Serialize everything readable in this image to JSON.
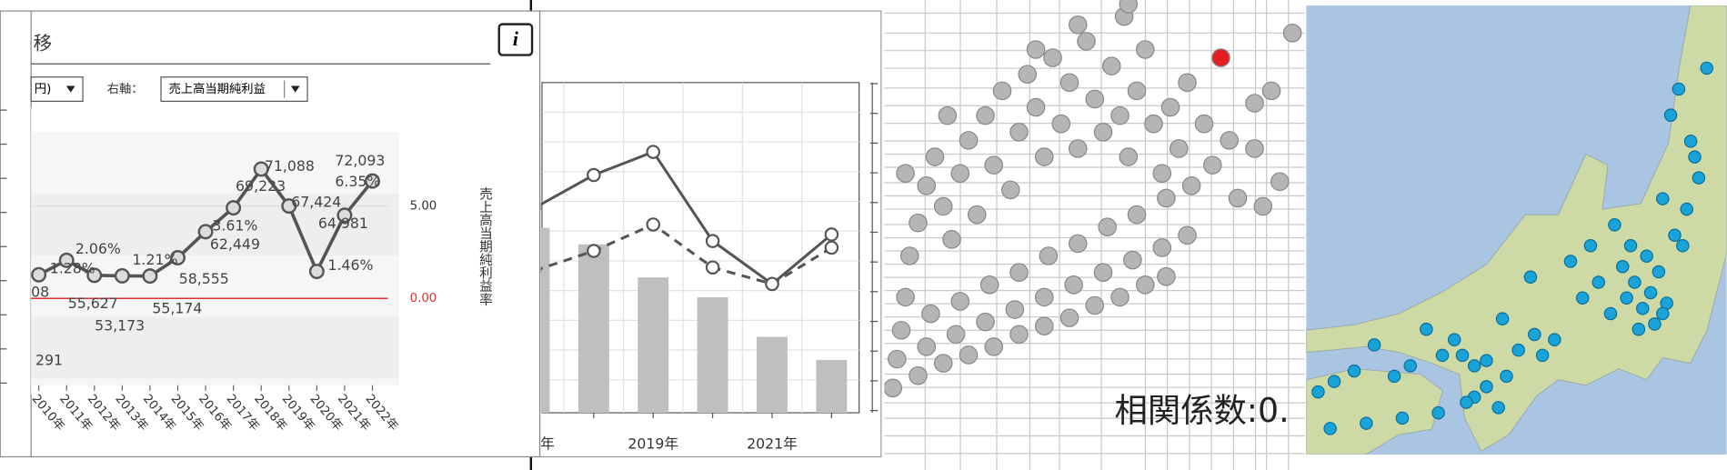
{
  "ui": {
    "title": "移",
    "info_icon": "i",
    "left_axis_select": "円)",
    "right_axis_caption": "右軸：",
    "right_axis_select": "売上高当期純利益"
  },
  "chart_data": [
    {
      "type": "line",
      "categories": [
        "2010年",
        "2011年",
        "2012年",
        "2013年",
        "2014年",
        "2015年",
        "2016年",
        "2017年",
        "2018年",
        "2019年",
        "2020年",
        "2021年",
        "2022年"
      ],
      "series": [
        {
          "color": "#555555",
          "axis": "y2",
          "values": [
            1.28,
            2.06,
            1.25,
            1.22,
            1.21,
            2.2,
            3.61,
            4.9,
            7.0,
            5.0,
            1.46,
            4.5,
            6.35
          ],
          "value_labels": [
            "1.28%",
            "2.06%",
            null,
            null,
            "1.21%",
            null,
            "3.61%",
            null,
            null,
            null,
            "1.46%",
            null,
            "6.35%"
          ]
        }
      ],
      "sales_labels": [
        null,
        null,
        "55,627",
        "53,173",
        "55,174",
        "58,555",
        "62,449",
        "69,223",
        "71,088",
        "67,424",
        null,
        "64,981",
        "72,093"
      ],
      "fragments": [
        "08",
        "291"
      ],
      "y2label": "売上高当期純利益率",
      "y2lim": [
        -4.7,
        9.0
      ],
      "y2ticks": [
        {
          "value": 0,
          "label": "0.00"
        },
        {
          "value": 5,
          "label": "5.00"
        }
      ],
      "zero_line_color": "#e03030"
    },
    {
      "type": "bar-line",
      "categories": [
        "年",
        null,
        "2019年",
        null,
        "2021年",
        null
      ],
      "ylim": [
        0,
        100
      ],
      "series": [
        {
          "kind": "bar",
          "color": "#bfbfbf",
          "values": [
            56,
            51,
            41,
            35,
            23,
            16
          ]
        },
        {
          "kind": "line",
          "color": "#555555",
          "values": [
            62,
            72,
            79,
            52,
            39,
            54
          ]
        },
        {
          "kind": "dashed-line",
          "color": "#555555",
          "values": [
            43,
            49,
            57,
            44,
            39,
            50
          ]
        }
      ]
    },
    {
      "type": "scatter",
      "annotation": "相関係数:0.",
      "xlim": [
        0,
        100
      ],
      "ylim": [
        0,
        100
      ],
      "series": [
        {
          "color": "#b5b5b5",
          "x": [
            2,
            8,
            14,
            20,
            26,
            32,
            38,
            44,
            50,
            56,
            62,
            67,
            3,
            10,
            17,
            24,
            31,
            38,
            45,
            52,
            59,
            66,
            72,
            4,
            11,
            18,
            25,
            32,
            39,
            46,
            53,
            60,
            67,
            73,
            5,
            6,
            8,
            10,
            12,
            14,
            16,
            18,
            20,
            22,
            24,
            26,
            28,
            30,
            32,
            34,
            36,
            38,
            40,
            42,
            44,
            46,
            48,
            50,
            52,
            54,
            56,
            58,
            60,
            62,
            64,
            66,
            68,
            70,
            72,
            76,
            78,
            82,
            84,
            88,
            90,
            92,
            94,
            97,
            57,
            58,
            46,
            36,
            15,
            5,
            88
          ],
          "values": [
            6,
            9,
            12,
            14,
            16,
            19,
            21,
            23,
            26,
            28,
            31,
            33,
            13,
            16,
            19,
            22,
            25,
            28,
            31,
            34,
            37,
            40,
            43,
            20,
            24,
            27,
            31,
            34,
            38,
            41,
            45,
            48,
            52,
            55,
            28,
            38,
            46,
            55,
            62,
            50,
            42,
            58,
            66,
            48,
            72,
            60,
            78,
            54,
            68,
            82,
            74,
            62,
            86,
            70,
            80,
            64,
            90,
            76,
            68,
            84,
            72,
            62,
            78,
            88,
            70,
            58,
            74,
            64,
            80,
            70,
            60,
            66,
            52,
            64,
            50,
            78,
            56,
            92,
            96,
            99,
            94,
            88,
            72,
            58,
            75
          ]
        },
        {
          "color": "#e02020",
          "x": [
            80
          ],
          "values": [
            86
          ]
        }
      ]
    }
  ],
  "map": {
    "lon_range": [
      131.3,
      141.8
    ],
    "lat_range": [
      32.9,
      41.5
    ],
    "site_color": "#1aa3d9",
    "lon": [
      139.7,
      139.9,
      140.1,
      139.5,
      139.3,
      140.3,
      139.8,
      140.0,
      139.2,
      138.9,
      138.6,
      138.2,
      137.9,
      137.5,
      137.0,
      136.9,
      136.6,
      136.2,
      135.8,
      135.5,
      135.2,
      135.0,
      134.7,
      134.3,
      133.9,
      133.5,
      133.0,
      132.5,
      132.0,
      131.6,
      135.5,
      135.8,
      136.1,
      135.3,
      134.6,
      133.7,
      132.8,
      131.9,
      140.5,
      140.8,
      141.1,
      140.9,
      140.4,
      140.6,
      141.3,
      140.2,
      140.7,
      141.0,
      139.0,
      138.4,
      137.2,
      136.3,
      139.6,
      140.2,
      139.4
    ],
    "lat": [
      35.7,
      36.0,
      36.4,
      36.2,
      35.9,
      35.8,
      36.7,
      35.4,
      36.5,
      35.6,
      36.2,
      35.9,
      36.6,
      35.1,
      35.2,
      36.3,
      34.9,
      35.5,
      34.7,
      34.6,
      34.8,
      35.1,
      34.8,
      35.3,
      34.6,
      34.4,
      35.0,
      34.5,
      34.3,
      34.1,
      34.0,
      34.2,
      33.8,
      33.9,
      33.7,
      33.6,
      33.5,
      33.4,
      37.1,
      37.6,
      38.2,
      38.9,
      39.4,
      39.9,
      40.3,
      37.8,
      36.9,
      38.6,
      37.3,
      36.9,
      34.8,
      34.4,
      35.3,
      35.6,
      36.9
    ]
  }
}
